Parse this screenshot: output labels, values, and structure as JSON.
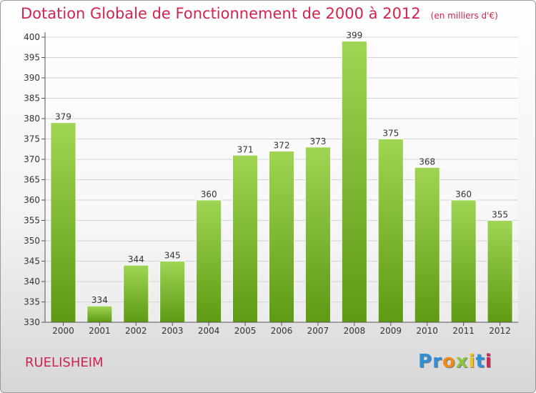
{
  "header": {
    "title": "Dotation Globale de Fonctionnement de 2000 à 2012",
    "subtitle": "(en milliers d'€)"
  },
  "footer": {
    "city": "RUELISHEIM",
    "logo_text": "Proxiti"
  },
  "colors": {
    "bar_top": "#9fd553",
    "bar_bottom": "#5e9a14",
    "title": "#d0244e",
    "grid": "#d2d2d2"
  },
  "chart_data": {
    "type": "bar",
    "categories": [
      "2000",
      "2001",
      "2002",
      "2003",
      "2004",
      "2005",
      "2006",
      "2007",
      "2008",
      "2009",
      "2010",
      "2011",
      "2012"
    ],
    "values": [
      379,
      334,
      344,
      345,
      360,
      371,
      372,
      373,
      399,
      375,
      368,
      360,
      355
    ],
    "ylim": [
      330,
      400
    ],
    "yticks": [
      330,
      335,
      340,
      345,
      350,
      355,
      360,
      365,
      370,
      375,
      380,
      385,
      390,
      395,
      400
    ],
    "grid": true,
    "data_labels": true
  }
}
